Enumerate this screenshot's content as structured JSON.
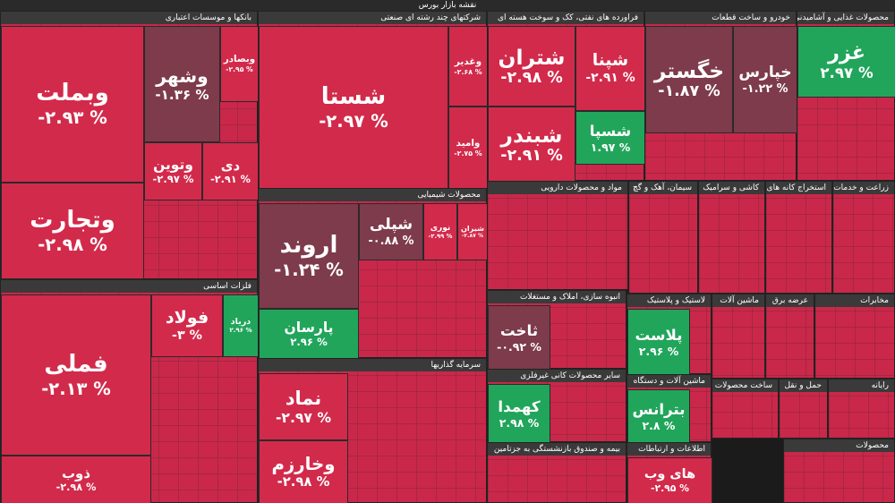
{
  "title": "نقشه بازار بورس",
  "sectors": [
    {
      "name": "بانکها و موسسات اعتباری",
      "tiles": [
        {
          "symbol": "وبملت",
          "change": "-۲.۹۳ %",
          "color": "#d22a4b"
        },
        {
          "symbol": "وتجارت",
          "change": "-۲.۹۸ %",
          "color": "#d22a4b"
        },
        {
          "symbol": "وشهر",
          "change": "-۱.۳۶ %",
          "color": "#7d3b4b"
        },
        {
          "symbol": "وبصادر",
          "change": "-۲.۹۵ %",
          "color": "#d22a4b"
        },
        {
          "symbol": "وتوین",
          "change": "-۲.۹۷ %",
          "color": "#d22a4b"
        },
        {
          "symbol": "دی",
          "change": "-۲.۹۱ %",
          "color": "#d22a4b"
        }
      ]
    },
    {
      "name": "فلزات اساسی",
      "tiles": [
        {
          "symbol": "فملی",
          "change": "-۲.۱۳ %",
          "color": "#d22a4b"
        },
        {
          "symbol": "فولاد",
          "change": "-۳ %",
          "color": "#d22a4b"
        },
        {
          "symbol": "دریاد",
          "change": "۲.۹۶ %",
          "color": "#21a55b"
        },
        {
          "symbol": "ذوب",
          "change": "-۲.۹۸ %",
          "color": "#d22a4b"
        }
      ]
    },
    {
      "name": "شرکتهای چند رشته ای صنعتی",
      "tiles": [
        {
          "symbol": "شستا",
          "change": "-۲.۹۷ %",
          "color": "#d22a4b"
        },
        {
          "symbol": "وغدیر",
          "change": "-۲.۶۸ %",
          "color": "#d22a4b"
        },
        {
          "symbol": "وامید",
          "change": "-۲.۷۵ %",
          "color": "#d22a4b"
        }
      ]
    },
    {
      "name": "محصولات شیمیایی",
      "tiles": [
        {
          "symbol": "اروند",
          "change": "-۱.۲۴ %",
          "color": "#7d3b4b"
        },
        {
          "symbol": "شپلی",
          "change": "-۰.۸۸ %",
          "color": "#7d3b4b"
        },
        {
          "symbol": "نوری",
          "change": "-۲.۹۹ %",
          "color": "#d22a4b"
        },
        {
          "symbol": "شیران",
          "change": "-۲.۸۷ %",
          "color": "#d22a4b"
        },
        {
          "symbol": "پارسان",
          "change": "۲.۹۶ %",
          "color": "#21a55b"
        }
      ]
    },
    {
      "name": "سرمایه گذاریها",
      "tiles": [
        {
          "symbol": "نماد",
          "change": "-۲.۹۷ %",
          "color": "#d22a4b"
        },
        {
          "symbol": "وخارزم",
          "change": "-۲.۹۸ %",
          "color": "#d22a4b"
        }
      ]
    },
    {
      "name": "فراورده های نفتی، کک و سوخت هسته ای",
      "tiles": [
        {
          "symbol": "شتران",
          "change": "-۲.۹۸ %",
          "color": "#d22a4b"
        },
        {
          "symbol": "شپنا",
          "change": "-۲.۹۱ %",
          "color": "#d22a4b"
        },
        {
          "symbol": "شبندر",
          "change": "-۲.۹۱ %",
          "color": "#d22a4b"
        },
        {
          "symbol": "شسپا",
          "change": "۱.۹۷ %",
          "color": "#21a55b"
        }
      ]
    },
    {
      "name": "مواد و محصولات دارویی",
      "tiles": []
    },
    {
      "name": "انبوه سازی، املاک و مستغلات",
      "tiles": [
        {
          "symbol": "ثاخت",
          "change": "-۰.۹۲ %",
          "color": "#7d3b4b"
        }
      ]
    },
    {
      "name": "سایر محصولات کانی غیرفلزی",
      "tiles": [
        {
          "symbol": "کهمدا",
          "change": "۲.۹۸ %",
          "color": "#21a55b"
        }
      ]
    },
    {
      "name": "بیمه و صندوق بازنشستگی به جزتامین",
      "tiles": []
    },
    {
      "name": "خودرو و ساخت قطعات",
      "tiles": [
        {
          "symbol": "خگستر",
          "change": "-۱.۸۷ %",
          "color": "#7d3b4b"
        },
        {
          "symbol": "خپارس",
          "change": "-۱.۲۲ %",
          "color": "#7d3b4b"
        }
      ]
    },
    {
      "name": "محصولات غذایی و آشامیدنی",
      "tiles": [
        {
          "symbol": "غزر",
          "change": "۲.۹۷ %",
          "color": "#21a55b"
        }
      ]
    },
    {
      "name": "سیمان، آهک و گچ",
      "tiles": []
    },
    {
      "name": "کاشی و سرامیک",
      "tiles": []
    },
    {
      "name": "استخراج کانه های فلزی",
      "tiles": []
    },
    {
      "name": "زراعت و خدمات",
      "tiles": []
    },
    {
      "name": "لاستیک و پلاستیک",
      "tiles": [
        {
          "symbol": "پلاست",
          "change": "۲.۹۶ %",
          "color": "#21a55b"
        }
      ]
    },
    {
      "name": "ماشین آلات و دستگاه",
      "tiles": [
        {
          "symbol": "بترانس",
          "change": "۲.۸ %",
          "color": "#21a55b"
        }
      ]
    },
    {
      "name": "اطلاعات و ارتباطات",
      "tiles": [
        {
          "symbol": "های وب",
          "change": "-۲.۹۵ %",
          "color": "#d22a4b"
        }
      ]
    },
    {
      "name": "ماشین آلات",
      "tiles": []
    },
    {
      "name": "عرضه برق",
      "tiles": []
    },
    {
      "name": "مخابرات",
      "tiles": []
    },
    {
      "name": "ساخت محصولات",
      "tiles": []
    },
    {
      "name": "حمل و نقل",
      "tiles": []
    },
    {
      "name": "رایانه",
      "tiles": []
    },
    {
      "name": "محصولات",
      "tiles": []
    }
  ]
}
